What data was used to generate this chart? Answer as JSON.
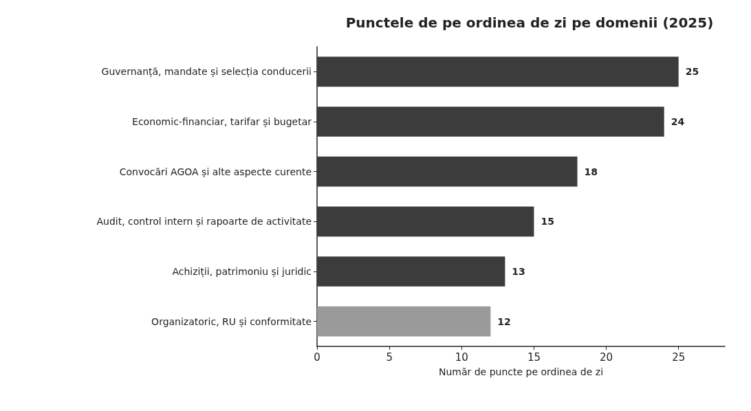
{
  "chart_data": {
    "type": "bar",
    "orientation": "horizontal",
    "title": "Punctele de pe ordinea de zi pe domenii (2025)",
    "xlabel": "Număr de puncte pe ordinea de zi",
    "categories": [
      "Guvernanță, mandate și selecția conducerii",
      "Economic-financiar, tarifar și bugetar",
      "Convocări AGOA și alte aspecte curente",
      "Audit, control intern și rapoarte de activitate",
      "Achiziții, patrimoniu și juridic",
      "Organizatoric, RU și conformitate"
    ],
    "values": [
      25,
      24,
      18,
      15,
      13,
      12
    ],
    "colors": [
      "#3c3c3c",
      "#3c3c3c",
      "#3c3c3c",
      "#3c3c3c",
      "#3c3c3c",
      "#9a9a9a"
    ],
    "xlim": [
      0,
      28.2
    ],
    "xticks": [
      0,
      5,
      10,
      15,
      20,
      25
    ],
    "data_labels": true,
    "grid": false
  }
}
